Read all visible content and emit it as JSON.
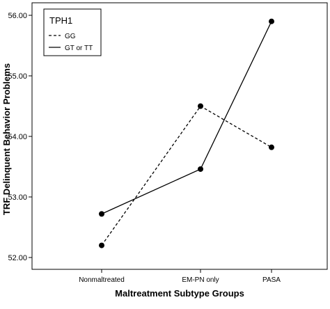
{
  "chart_data": {
    "type": "line",
    "xlabel": "Maltreatment Subtype Groups",
    "ylabel": "TRF Delinquent Behavior Problems",
    "categories": [
      "Nonmaltreated",
      "EM-PN only",
      "PASA"
    ],
    "ylim": [
      51.9,
      56.2
    ],
    "yticks": [
      52.0,
      53.0,
      54.0,
      55.0,
      56.0
    ],
    "ytick_labels": [
      "52.00",
      "53.00",
      "54.00",
      "55.00",
      "56.00"
    ],
    "grid": false,
    "legend": {
      "title": "TPH1",
      "placement": "top-left"
    },
    "series": [
      {
        "name": "GG",
        "style": "dashed",
        "color": "#000000",
        "values": [
          52.2,
          54.5,
          53.82
        ]
      },
      {
        "name": "GT or TT",
        "style": "solid",
        "color": "#000000",
        "values": [
          52.72,
          53.46,
          55.9
        ]
      }
    ]
  }
}
